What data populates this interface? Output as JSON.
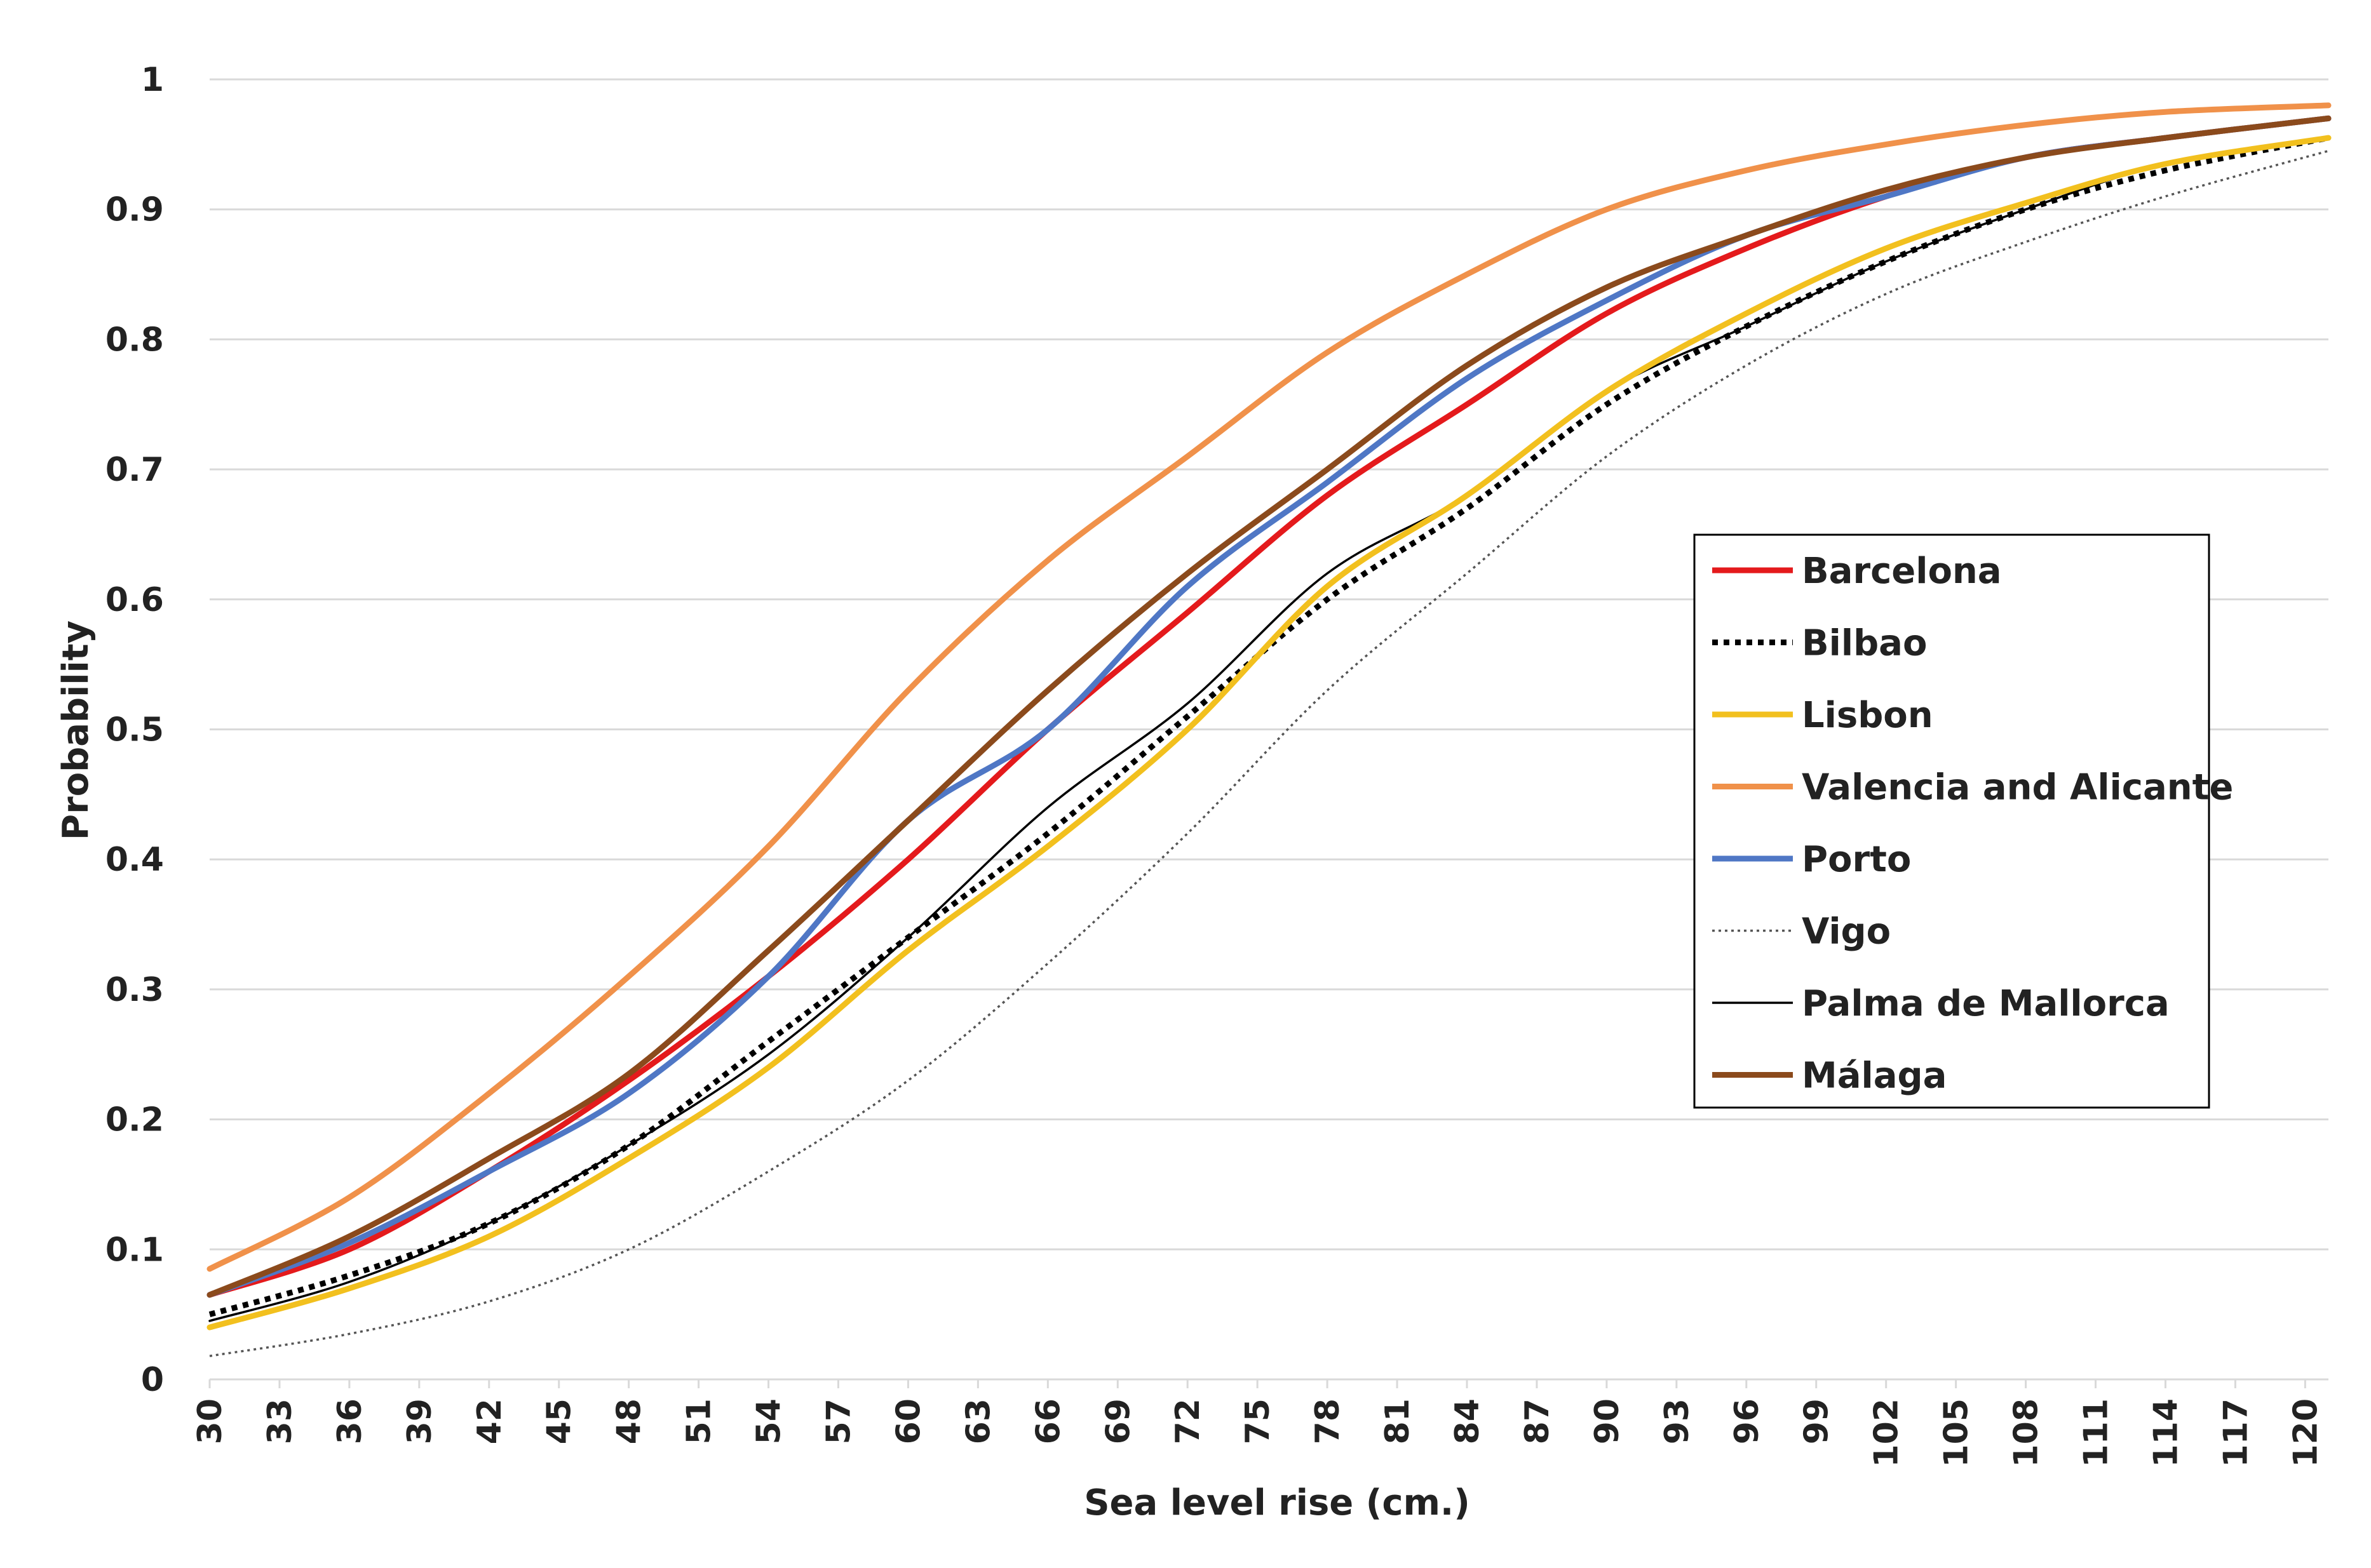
{
  "chart_data": {
    "type": "line",
    "title": "",
    "xlabel": "Sea level rise (cm.)",
    "ylabel": "Probability",
    "xlim": [
      30,
      121
    ],
    "ylim": [
      0,
      1
    ],
    "y_ticks": [
      "0",
      "0.1",
      "0.2",
      "0.3",
      "0.4",
      "0.5",
      "0.6",
      "0.7",
      "0.8",
      "0.9",
      "1"
    ],
    "x_ticks": [
      "30",
      "33",
      "36",
      "39",
      "42",
      "45",
      "48",
      "51",
      "54",
      "57",
      "60",
      "63",
      "66",
      "69",
      "72",
      "75",
      "78",
      "81",
      "84",
      "87",
      "90",
      "93",
      "96",
      "99",
      "102",
      "105",
      "108",
      "111",
      "114",
      "117",
      "120"
    ],
    "grid": "horizontal",
    "legend_position": "right",
    "x": [
      30,
      36,
      42,
      48,
      54,
      60,
      66,
      72,
      78,
      84,
      90,
      96,
      102,
      108,
      114,
      121
    ],
    "series": [
      {
        "name": "Barcelona",
        "color": "#e41a1c",
        "style": "solid",
        "width": "thick",
        "values": [
          0.065,
          0.1,
          0.16,
          0.23,
          0.31,
          0.4,
          0.5,
          0.59,
          0.68,
          0.75,
          0.82,
          0.87,
          0.91,
          0.94,
          0.955,
          0.97
        ]
      },
      {
        "name": "Bilbao",
        "color": "#000000",
        "style": "dotted",
        "width": "thick",
        "values": [
          0.05,
          0.08,
          0.12,
          0.18,
          0.26,
          0.34,
          0.42,
          0.51,
          0.6,
          0.67,
          0.75,
          0.81,
          0.86,
          0.9,
          0.93,
          0.955
        ]
      },
      {
        "name": "Lisbon",
        "color": "#f2c01e",
        "style": "solid",
        "width": "thick",
        "values": [
          0.04,
          0.07,
          0.11,
          0.17,
          0.24,
          0.33,
          0.41,
          0.5,
          0.61,
          0.68,
          0.76,
          0.82,
          0.87,
          0.905,
          0.935,
          0.955
        ]
      },
      {
        "name": "Valencia and Alicante",
        "color": "#f0914a",
        "style": "solid",
        "width": "thick",
        "values": [
          0.085,
          0.14,
          0.22,
          0.31,
          0.41,
          0.53,
          0.63,
          0.71,
          0.79,
          0.85,
          0.9,
          0.93,
          0.95,
          0.965,
          0.975,
          0.98
        ]
      },
      {
        "name": "Porto",
        "color": "#4f77c5",
        "style": "solid",
        "width": "thick",
        "values": [
          0.065,
          0.105,
          0.16,
          0.22,
          0.31,
          0.43,
          0.5,
          0.61,
          0.69,
          0.77,
          0.83,
          0.88,
          0.91,
          0.94,
          0.955,
          0.97
        ]
      },
      {
        "name": "Vigo",
        "color": "#555555",
        "style": "dotted",
        "width": "thin",
        "values": [
          0.018,
          0.035,
          0.06,
          0.1,
          0.16,
          0.23,
          0.32,
          0.42,
          0.53,
          0.62,
          0.71,
          0.78,
          0.835,
          0.875,
          0.91,
          0.945
        ]
      },
      {
        "name": "Palma de Mallorca",
        "color": "#000000",
        "style": "solid",
        "width": "thin",
        "values": [
          0.045,
          0.075,
          0.12,
          0.18,
          0.25,
          0.34,
          0.44,
          0.52,
          0.62,
          0.68,
          0.76,
          0.81,
          0.86,
          0.9,
          0.935,
          0.955
        ]
      },
      {
        "name": "Málaga",
        "color": "#8b4a1c",
        "style": "solid",
        "width": "thick",
        "values": [
          0.065,
          0.11,
          0.17,
          0.235,
          0.33,
          0.43,
          0.53,
          0.62,
          0.7,
          0.78,
          0.84,
          0.88,
          0.915,
          0.94,
          0.955,
          0.97
        ]
      }
    ]
  }
}
